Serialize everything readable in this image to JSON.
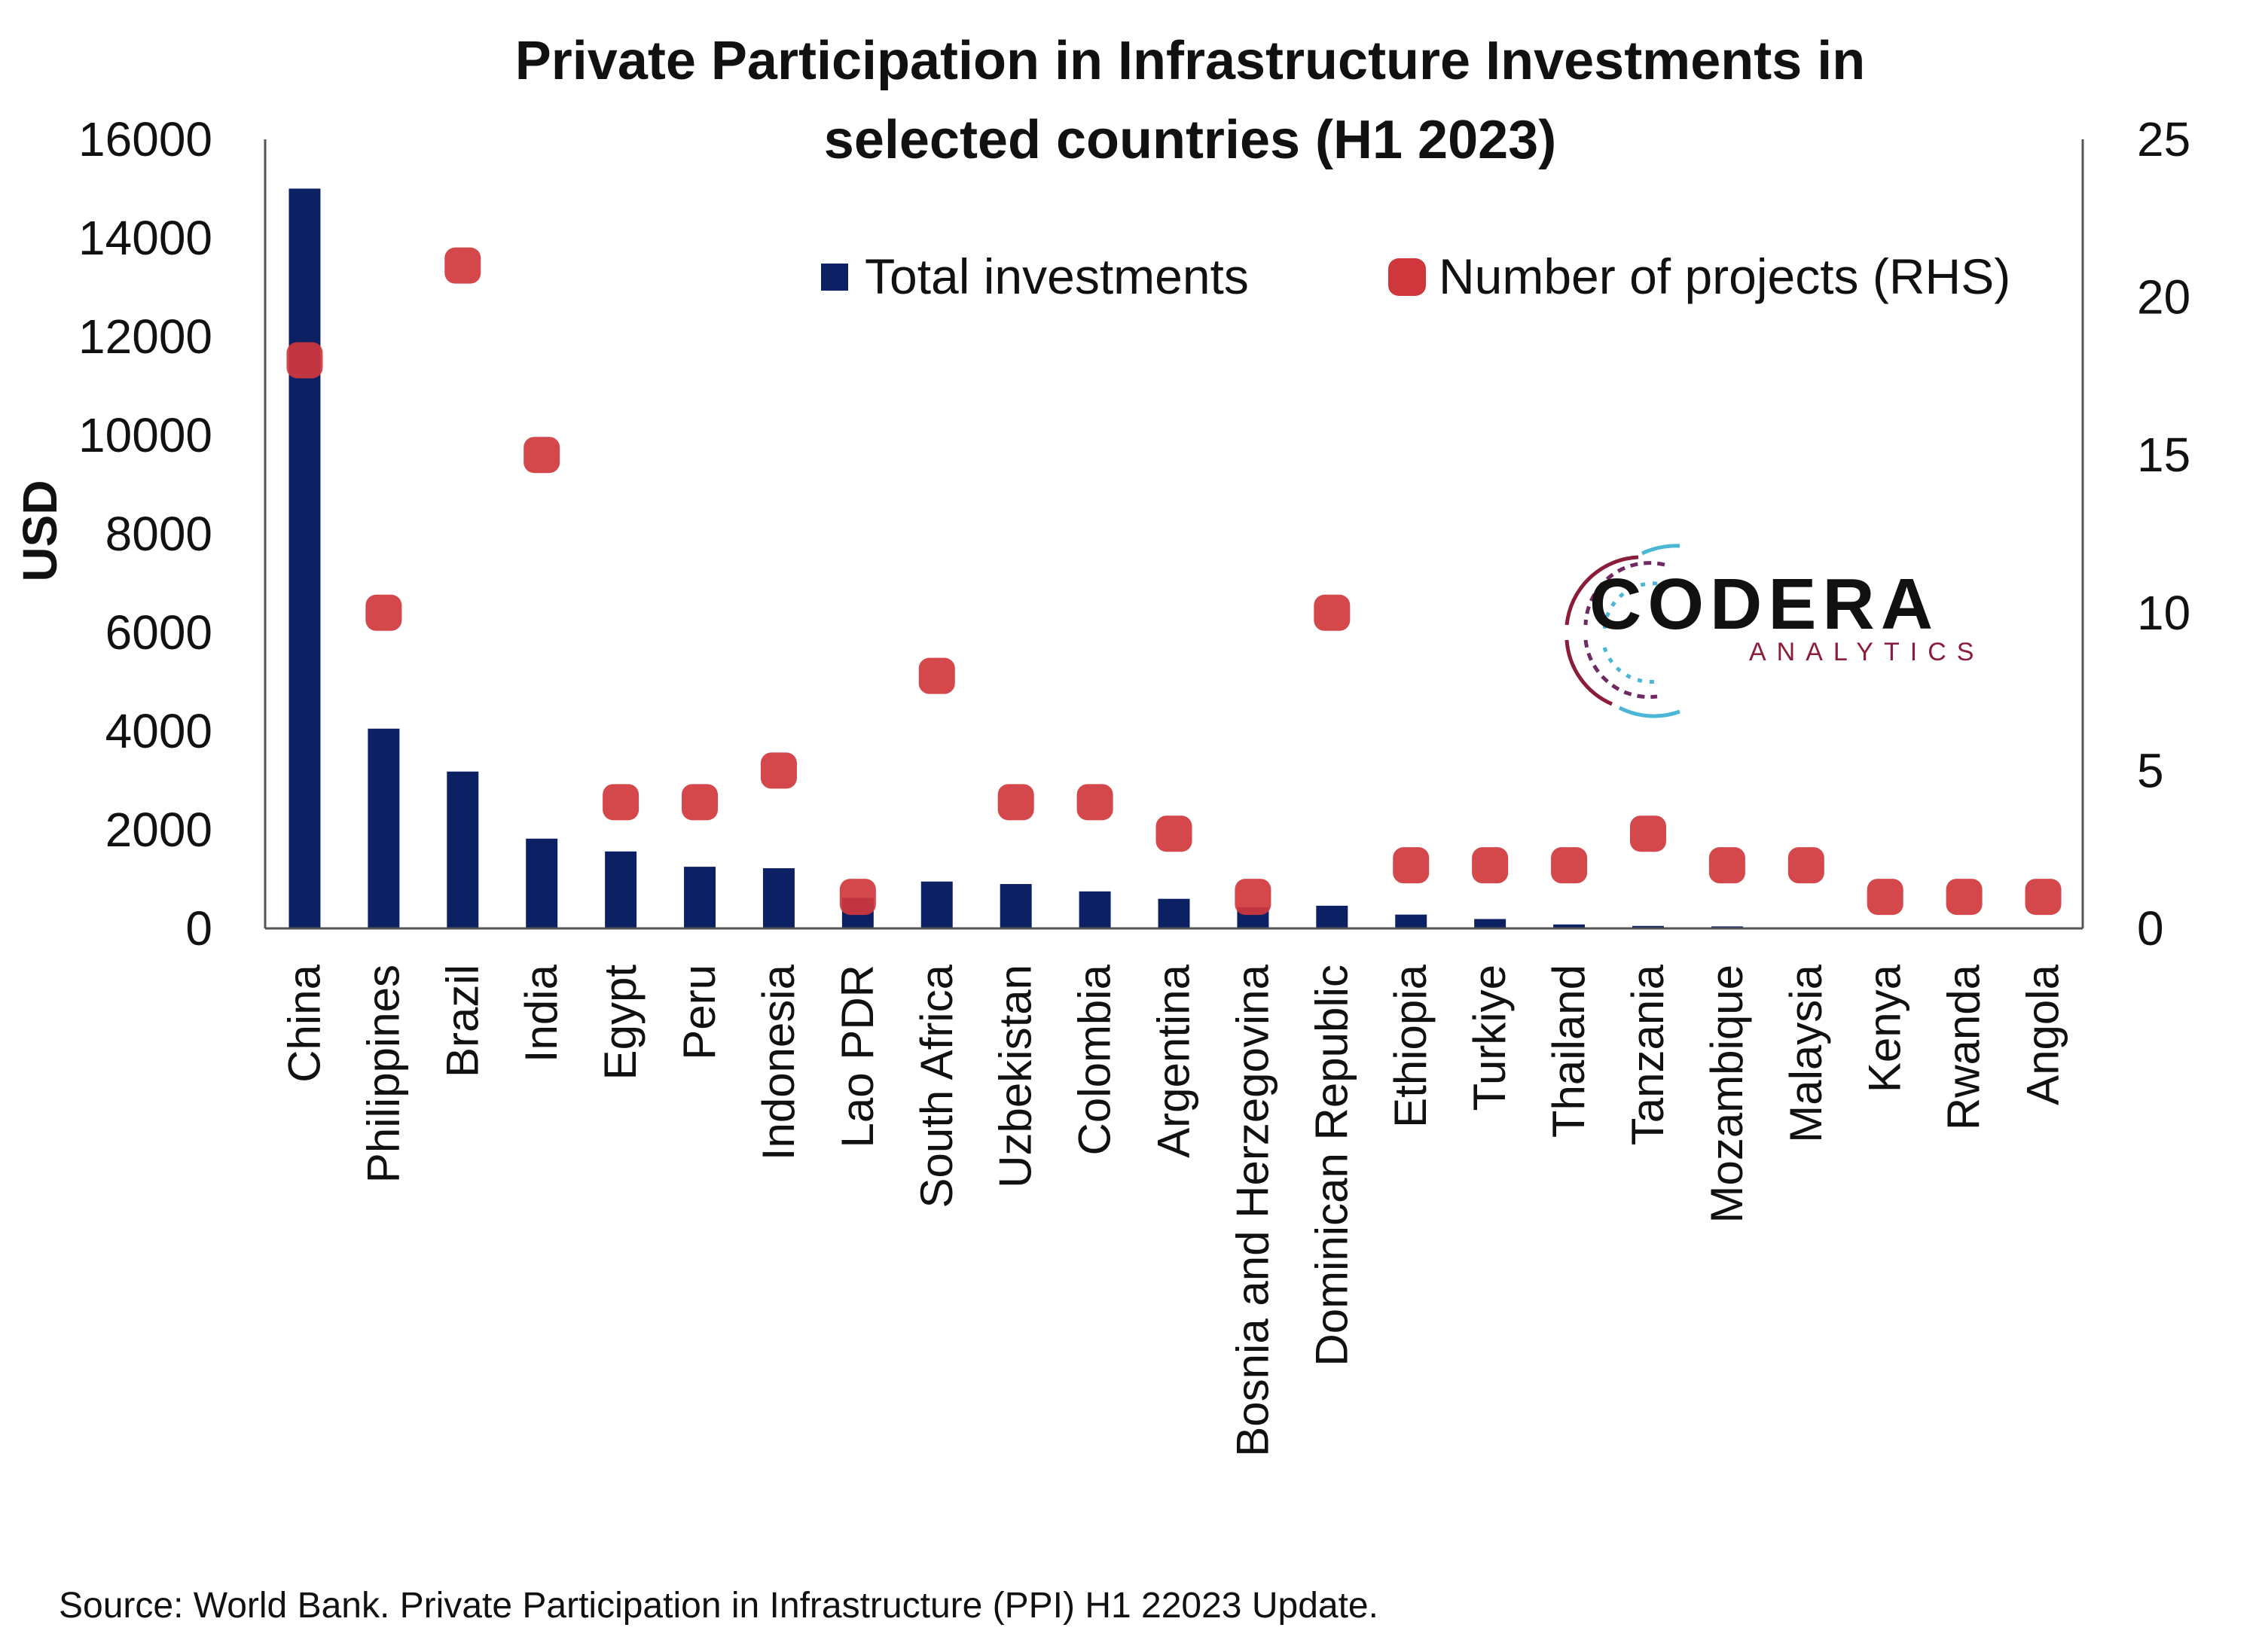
{
  "chart_data": {
    "type": "bar",
    "title_line1": "Private Participation in Infrastructure Investments in",
    "title_line2": "selected countries (H1 2023)",
    "ylabel": "USD",
    "y_ticks": [
      "0",
      "2000",
      "4000",
      "6000",
      "8000",
      "10000",
      "12000",
      "14000",
      "16000"
    ],
    "y2_ticks": [
      "0",
      "5",
      "10",
      "15",
      "20",
      "25"
    ],
    "ylim": [
      0,
      16000
    ],
    "y2lim": [
      0,
      25
    ],
    "categories": [
      "China",
      "Philippines",
      "Brazil",
      "India",
      "Egypt",
      "Peru",
      "Indonesia",
      "Lao PDR",
      "South Africa",
      "Uzbekistan",
      "Colombia",
      "Argentina",
      "Bosnia and Herzegovina",
      "Dominican Republic",
      "Ethiopia",
      "Turkiye",
      "Thailand",
      "Tanzania",
      "Mozambique",
      "Malaysia",
      "Kenya",
      "Rwanda",
      "Angola"
    ],
    "series": [
      {
        "name": "Total investments",
        "type": "bar",
        "axis": "left",
        "color": "#0b2163",
        "values": [
          15000,
          4050,
          3180,
          1820,
          1560,
          1250,
          1220,
          620,
          950,
          900,
          750,
          600,
          430,
          460,
          280,
          190,
          80,
          50,
          40,
          20,
          10,
          5,
          5
        ]
      },
      {
        "name": "Number of projects (RHS)",
        "type": "scatter",
        "axis": "right",
        "color": "#d0373c",
        "values": [
          18,
          10,
          21,
          15,
          4,
          4,
          5,
          1,
          8,
          4,
          4,
          3,
          1,
          10,
          2,
          2,
          2,
          3,
          2,
          2,
          1,
          1,
          1
        ]
      }
    ],
    "legend_position": "top-right",
    "grid": false
  },
  "logo": {
    "name": "CODERA",
    "sub": "ANALYTICS"
  },
  "source_note": "Source: World Bank. Private Participation in Infrastructure (PPI) H1 22023 Update."
}
